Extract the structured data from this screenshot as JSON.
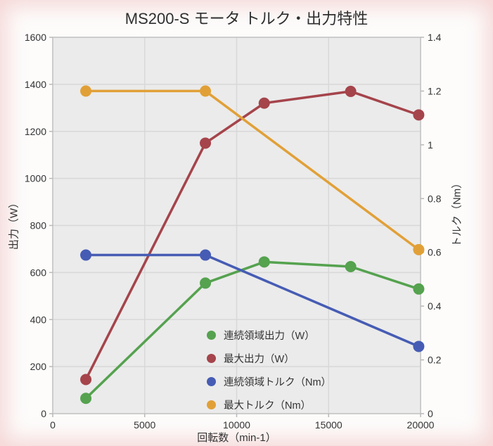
{
  "chart_data": {
    "type": "line",
    "title": "MS200-S モータ トルク・出力特性",
    "x_label": "回転数（min-1）",
    "y_left_label": "出力（W）",
    "y_right_label": "トルク（Nm）",
    "x_range": [
      0,
      20000
    ],
    "y_left_range": [
      0,
      1600
    ],
    "y_right_range": [
      0,
      1.4
    ],
    "x_ticks": [
      0,
      5000,
      10000,
      15000,
      20000
    ],
    "x_tick_labels": [
      "0",
      "5000",
      "10000",
      "15000",
      "20000"
    ],
    "y_left_ticks": [
      0,
      200,
      400,
      600,
      800,
      1000,
      1200,
      1400,
      1600
    ],
    "y_left_tick_labels": [
      "0",
      "200",
      "400",
      "600",
      "800",
      "1000",
      "1200",
      "1400",
      "1600"
    ],
    "y_right_ticks": [
      0,
      0.2,
      0.4,
      0.6,
      0.8,
      1,
      1.2,
      1.4
    ],
    "y_right_tick_labels": [
      "0",
      "0.2",
      "0.4",
      "0.6",
      "0.8",
      "1",
      "1.2",
      "1.4"
    ],
    "grid": "on",
    "legend_position": "inside-bottom-center",
    "series": [
      {
        "name": "連続領域出力（W）",
        "axis": "left",
        "color": "#55A24F",
        "points": [
          [
            1800,
            65
          ],
          [
            8300,
            555
          ],
          [
            11500,
            645
          ],
          [
            16200,
            625
          ],
          [
            19900,
            530
          ]
        ]
      },
      {
        "name": "最大出力（W）",
        "axis": "left",
        "color": "#A5444B",
        "points": [
          [
            1800,
            145
          ],
          [
            8300,
            1150
          ],
          [
            11500,
            1320
          ],
          [
            16200,
            1370
          ],
          [
            19900,
            1270
          ]
        ]
      },
      {
        "name": "連続領域トルク（Nm）",
        "axis": "right",
        "color": "#465CB4",
        "points": [
          [
            1800,
            0.59
          ],
          [
            8300,
            0.59
          ],
          [
            19900,
            0.25
          ]
        ]
      },
      {
        "name": "最大トルク（Nm）",
        "axis": "right",
        "color": "#E1A037",
        "points": [
          [
            1800,
            1.2
          ],
          [
            8300,
            1.2
          ],
          [
            19900,
            0.61
          ]
        ]
      }
    ],
    "style": {
      "plot_bg": "#EBEBEB",
      "grid_color": "#D8D8D8",
      "border_color": "#C4C4C4",
      "tick_color": "#B9B9B9",
      "text_color": "#333333"
    }
  }
}
